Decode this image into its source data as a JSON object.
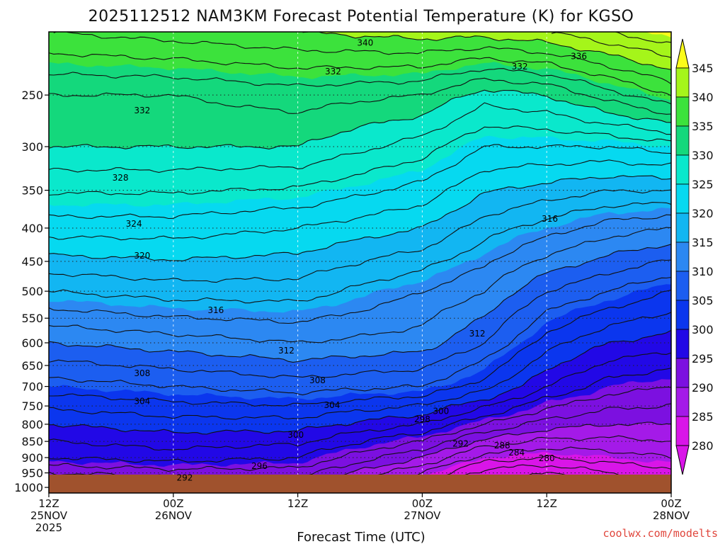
{
  "chart_data": {
    "type": "heatmap",
    "title": "2025112512 NAM3KM Forecast Potential Temperature (K) for KGSO",
    "xlabel": "Forecast Time (UTC)",
    "ylabel": "",
    "x_ticks": [
      {
        "hours": 0,
        "line1": "12Z",
        "line2": "25NOV",
        "line3": "2025"
      },
      {
        "hours": 12,
        "line1": "00Z",
        "line2": "26NOV",
        "line3": ""
      },
      {
        "hours": 24,
        "line1": "12Z",
        "line2": "",
        "line3": ""
      },
      {
        "hours": 36,
        "line1": "00Z",
        "line2": "27NOV",
        "line3": ""
      },
      {
        "hours": 48,
        "line1": "12Z",
        "line2": "",
        "line3": ""
      },
      {
        "hours": 60,
        "line1": "00Z",
        "line2": "28NOV",
        "line3": ""
      }
    ],
    "xlim": [
      0,
      60
    ],
    "y_ticks": [
      250,
      300,
      350,
      400,
      450,
      500,
      550,
      600,
      650,
      700,
      750,
      800,
      850,
      900,
      950,
      1000
    ],
    "ylim": [
      1020,
      200
    ],
    "y_scale": "log",
    "grid": true,
    "colorbar": {
      "levels": [
        280,
        285,
        290,
        295,
        300,
        305,
        310,
        315,
        320,
        325,
        330,
        335,
        340,
        345
      ],
      "colors": [
        "#d915e8",
        "#a41ae8",
        "#7c10e0",
        "#2208e6",
        "#0b36ee",
        "#1c5ef0",
        "#2c88f2",
        "#12b6f2",
        "#06d9f0",
        "#0ae8cc",
        "#14d87c",
        "#3ce23c",
        "#a5f51a",
        "#fbfc1a"
      ],
      "placement": "right"
    },
    "contour_interval": 2,
    "contour_labels": [
      {
        "value": "340",
        "hours": 30.5,
        "p": 208
      },
      {
        "value": "336",
        "hours": 51.1,
        "p": 218
      },
      {
        "value": "332",
        "hours": 27.4,
        "p": 230
      },
      {
        "value": "332",
        "hours": 45.4,
        "p": 226
      },
      {
        "value": "332",
        "hours": 9.0,
        "p": 264
      },
      {
        "value": "328",
        "hours": 6.9,
        "p": 335
      },
      {
        "value": "324",
        "hours": 8.2,
        "p": 394
      },
      {
        "value": "320",
        "hours": 9.0,
        "p": 441
      },
      {
        "value": "316",
        "hours": 16.1,
        "p": 535
      },
      {
        "value": "316",
        "hours": 48.3,
        "p": 387
      },
      {
        "value": "312",
        "hours": 22.9,
        "p": 617
      },
      {
        "value": "312",
        "hours": 41.3,
        "p": 581
      },
      {
        "value": "308",
        "hours": 9.0,
        "p": 668
      },
      {
        "value": "308",
        "hours": 25.9,
        "p": 685
      },
      {
        "value": "304",
        "hours": 9.0,
        "p": 738
      },
      {
        "value": "304",
        "hours": 27.3,
        "p": 748
      },
      {
        "value": "300",
        "hours": 37.8,
        "p": 764
      },
      {
        "value": "298",
        "hours": 36.0,
        "p": 786
      },
      {
        "value": "300",
        "hours": 23.8,
        "p": 831
      },
      {
        "value": "292",
        "hours": 39.7,
        "p": 857
      },
      {
        "value": "288",
        "hours": 43.7,
        "p": 862
      },
      {
        "value": "284",
        "hours": 45.1,
        "p": 884
      },
      {
        "value": "280",
        "hours": 48.0,
        "p": 902
      },
      {
        "value": "296",
        "hours": 20.3,
        "p": 927
      },
      {
        "value": "292",
        "hours": 13.1,
        "p": 966
      }
    ]
  },
  "credit": "coolwx.com/modelts"
}
